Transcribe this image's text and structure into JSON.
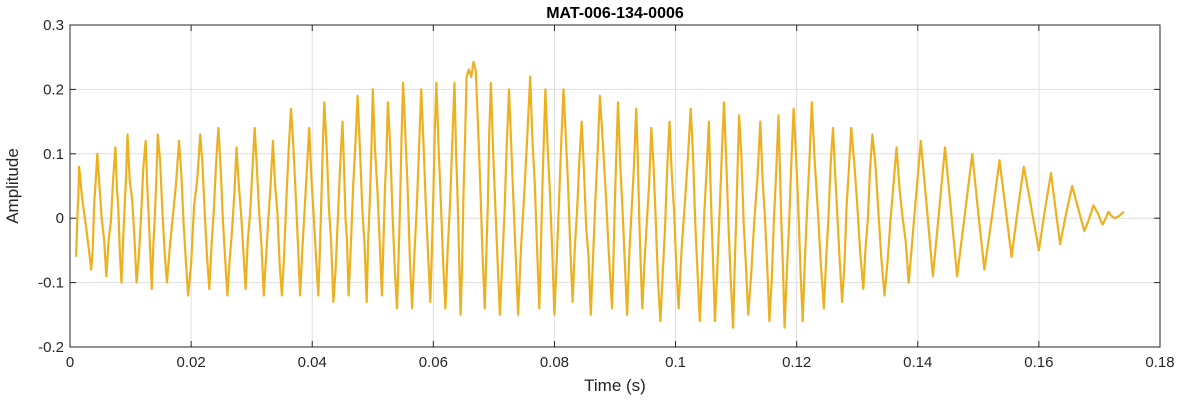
{
  "chart_data": {
    "type": "line",
    "title": "MAT-006-134-0006",
    "xlabel": "Time (s)",
    "ylabel": "Amplitude",
    "xlim": [
      0,
      0.18
    ],
    "ylim": [
      -0.2,
      0.3
    ],
    "xticks": [
      0,
      0.02,
      0.04,
      0.06,
      0.08,
      0.1,
      0.12,
      0.14,
      0.16,
      0.18
    ],
    "xtick_labels": [
      "0",
      "0.02",
      "0.04",
      "0.06",
      "0.08",
      "0.1",
      "0.12",
      "0.14",
      "0.16",
      "0.18"
    ],
    "yticks": [
      -0.2,
      -0.1,
      0,
      0.1,
      0.2,
      0.3
    ],
    "ytick_labels": [
      "-0.2",
      "-0.1",
      "0",
      "0.1",
      "0.2",
      "0.3"
    ],
    "grid": true,
    "series": [
      {
        "color": "#EDB120",
        "peaks": [
          [
            0.0015,
            0.08
          ],
          [
            0.0045,
            0.1
          ],
          [
            0.0075,
            0.11
          ],
          [
            0.0095,
            0.13
          ],
          [
            0.0125,
            0.12
          ],
          [
            0.0145,
            0.13
          ],
          [
            0.018,
            0.12
          ],
          [
            0.0215,
            0.13
          ],
          [
            0.0245,
            0.14
          ],
          [
            0.0275,
            0.11
          ],
          [
            0.0305,
            0.14
          ],
          [
            0.0335,
            0.12
          ],
          [
            0.0365,
            0.17
          ],
          [
            0.0395,
            0.14
          ],
          [
            0.042,
            0.18
          ],
          [
            0.045,
            0.15
          ],
          [
            0.0475,
            0.19
          ],
          [
            0.05,
            0.2
          ],
          [
            0.0525,
            0.18
          ],
          [
            0.055,
            0.21
          ],
          [
            0.058,
            0.2
          ],
          [
            0.0605,
            0.21
          ],
          [
            0.0635,
            0.21
          ],
          [
            0.0655,
            0.22
          ],
          [
            0.067,
            0.23
          ],
          [
            0.0695,
            0.21
          ],
          [
            0.0725,
            0.2
          ],
          [
            0.076,
            0.22
          ],
          [
            0.0785,
            0.2
          ],
          [
            0.0815,
            0.2
          ],
          [
            0.0845,
            0.15
          ],
          [
            0.0875,
            0.19
          ],
          [
            0.0905,
            0.18
          ],
          [
            0.0935,
            0.17
          ],
          [
            0.096,
            0.14
          ],
          [
            0.099,
            0.15
          ],
          [
            0.1025,
            0.17
          ],
          [
            0.1055,
            0.15
          ],
          [
            0.108,
            0.18
          ],
          [
            0.1105,
            0.16
          ],
          [
            0.114,
            0.15
          ],
          [
            0.117,
            0.16
          ],
          [
            0.1195,
            0.17
          ],
          [
            0.1225,
            0.18
          ],
          [
            0.126,
            0.14
          ],
          [
            0.129,
            0.14
          ],
          [
            0.1325,
            0.13
          ],
          [
            0.1365,
            0.11
          ],
          [
            0.1405,
            0.12
          ],
          [
            0.1445,
            0.11
          ],
          [
            0.149,
            0.1
          ],
          [
            0.1535,
            0.09
          ],
          [
            0.1575,
            0.08
          ],
          [
            0.162,
            0.07
          ],
          [
            0.1655,
            0.05
          ],
          [
            0.169,
            0.02
          ],
          [
            0.1715,
            0.01
          ],
          [
            0.174,
            0.01
          ]
        ],
        "troughs": [
          [
            0.001,
            -0.06
          ],
          [
            0.0035,
            -0.08
          ],
          [
            0.006,
            -0.09
          ],
          [
            0.0085,
            -0.1
          ],
          [
            0.011,
            -0.1
          ],
          [
            0.0135,
            -0.11
          ],
          [
            0.016,
            -0.1
          ],
          [
            0.0195,
            -0.12
          ],
          [
            0.023,
            -0.11
          ],
          [
            0.026,
            -0.12
          ],
          [
            0.029,
            -0.11
          ],
          [
            0.032,
            -0.12
          ],
          [
            0.035,
            -0.12
          ],
          [
            0.038,
            -0.12
          ],
          [
            0.041,
            -0.12
          ],
          [
            0.0435,
            -0.13
          ],
          [
            0.046,
            -0.12
          ],
          [
            0.049,
            -0.13
          ],
          [
            0.0515,
            -0.12
          ],
          [
            0.054,
            -0.14
          ],
          [
            0.0565,
            -0.14
          ],
          [
            0.0595,
            -0.13
          ],
          [
            0.062,
            -0.14
          ],
          [
            0.0645,
            -0.15
          ],
          [
            0.0685,
            -0.14
          ],
          [
            0.071,
            -0.15
          ],
          [
            0.074,
            -0.15
          ],
          [
            0.0775,
            -0.14
          ],
          [
            0.08,
            -0.15
          ],
          [
            0.083,
            -0.13
          ],
          [
            0.086,
            -0.15
          ],
          [
            0.0895,
            -0.14
          ],
          [
            0.092,
            -0.15
          ],
          [
            0.0945,
            -0.14
          ],
          [
            0.0975,
            -0.16
          ],
          [
            0.1005,
            -0.14
          ],
          [
            0.104,
            -0.16
          ],
          [
            0.1065,
            -0.16
          ],
          [
            0.1095,
            -0.17
          ],
          [
            0.112,
            -0.15
          ],
          [
            0.1155,
            -0.16
          ],
          [
            0.118,
            -0.17
          ],
          [
            0.121,
            -0.16
          ],
          [
            0.1245,
            -0.14
          ],
          [
            0.1275,
            -0.13
          ],
          [
            0.131,
            -0.11
          ],
          [
            0.1345,
            -0.12
          ],
          [
            0.1385,
            -0.1
          ],
          [
            0.1425,
            -0.09
          ],
          [
            0.1465,
            -0.09
          ],
          [
            0.151,
            -0.08
          ],
          [
            0.1555,
            -0.06
          ],
          [
            0.16,
            -0.05
          ],
          [
            0.1635,
            -0.04
          ],
          [
            0.1675,
            -0.02
          ],
          [
            0.1705,
            -0.01
          ],
          [
            0.1725,
            0.0
          ]
        ]
      }
    ]
  }
}
